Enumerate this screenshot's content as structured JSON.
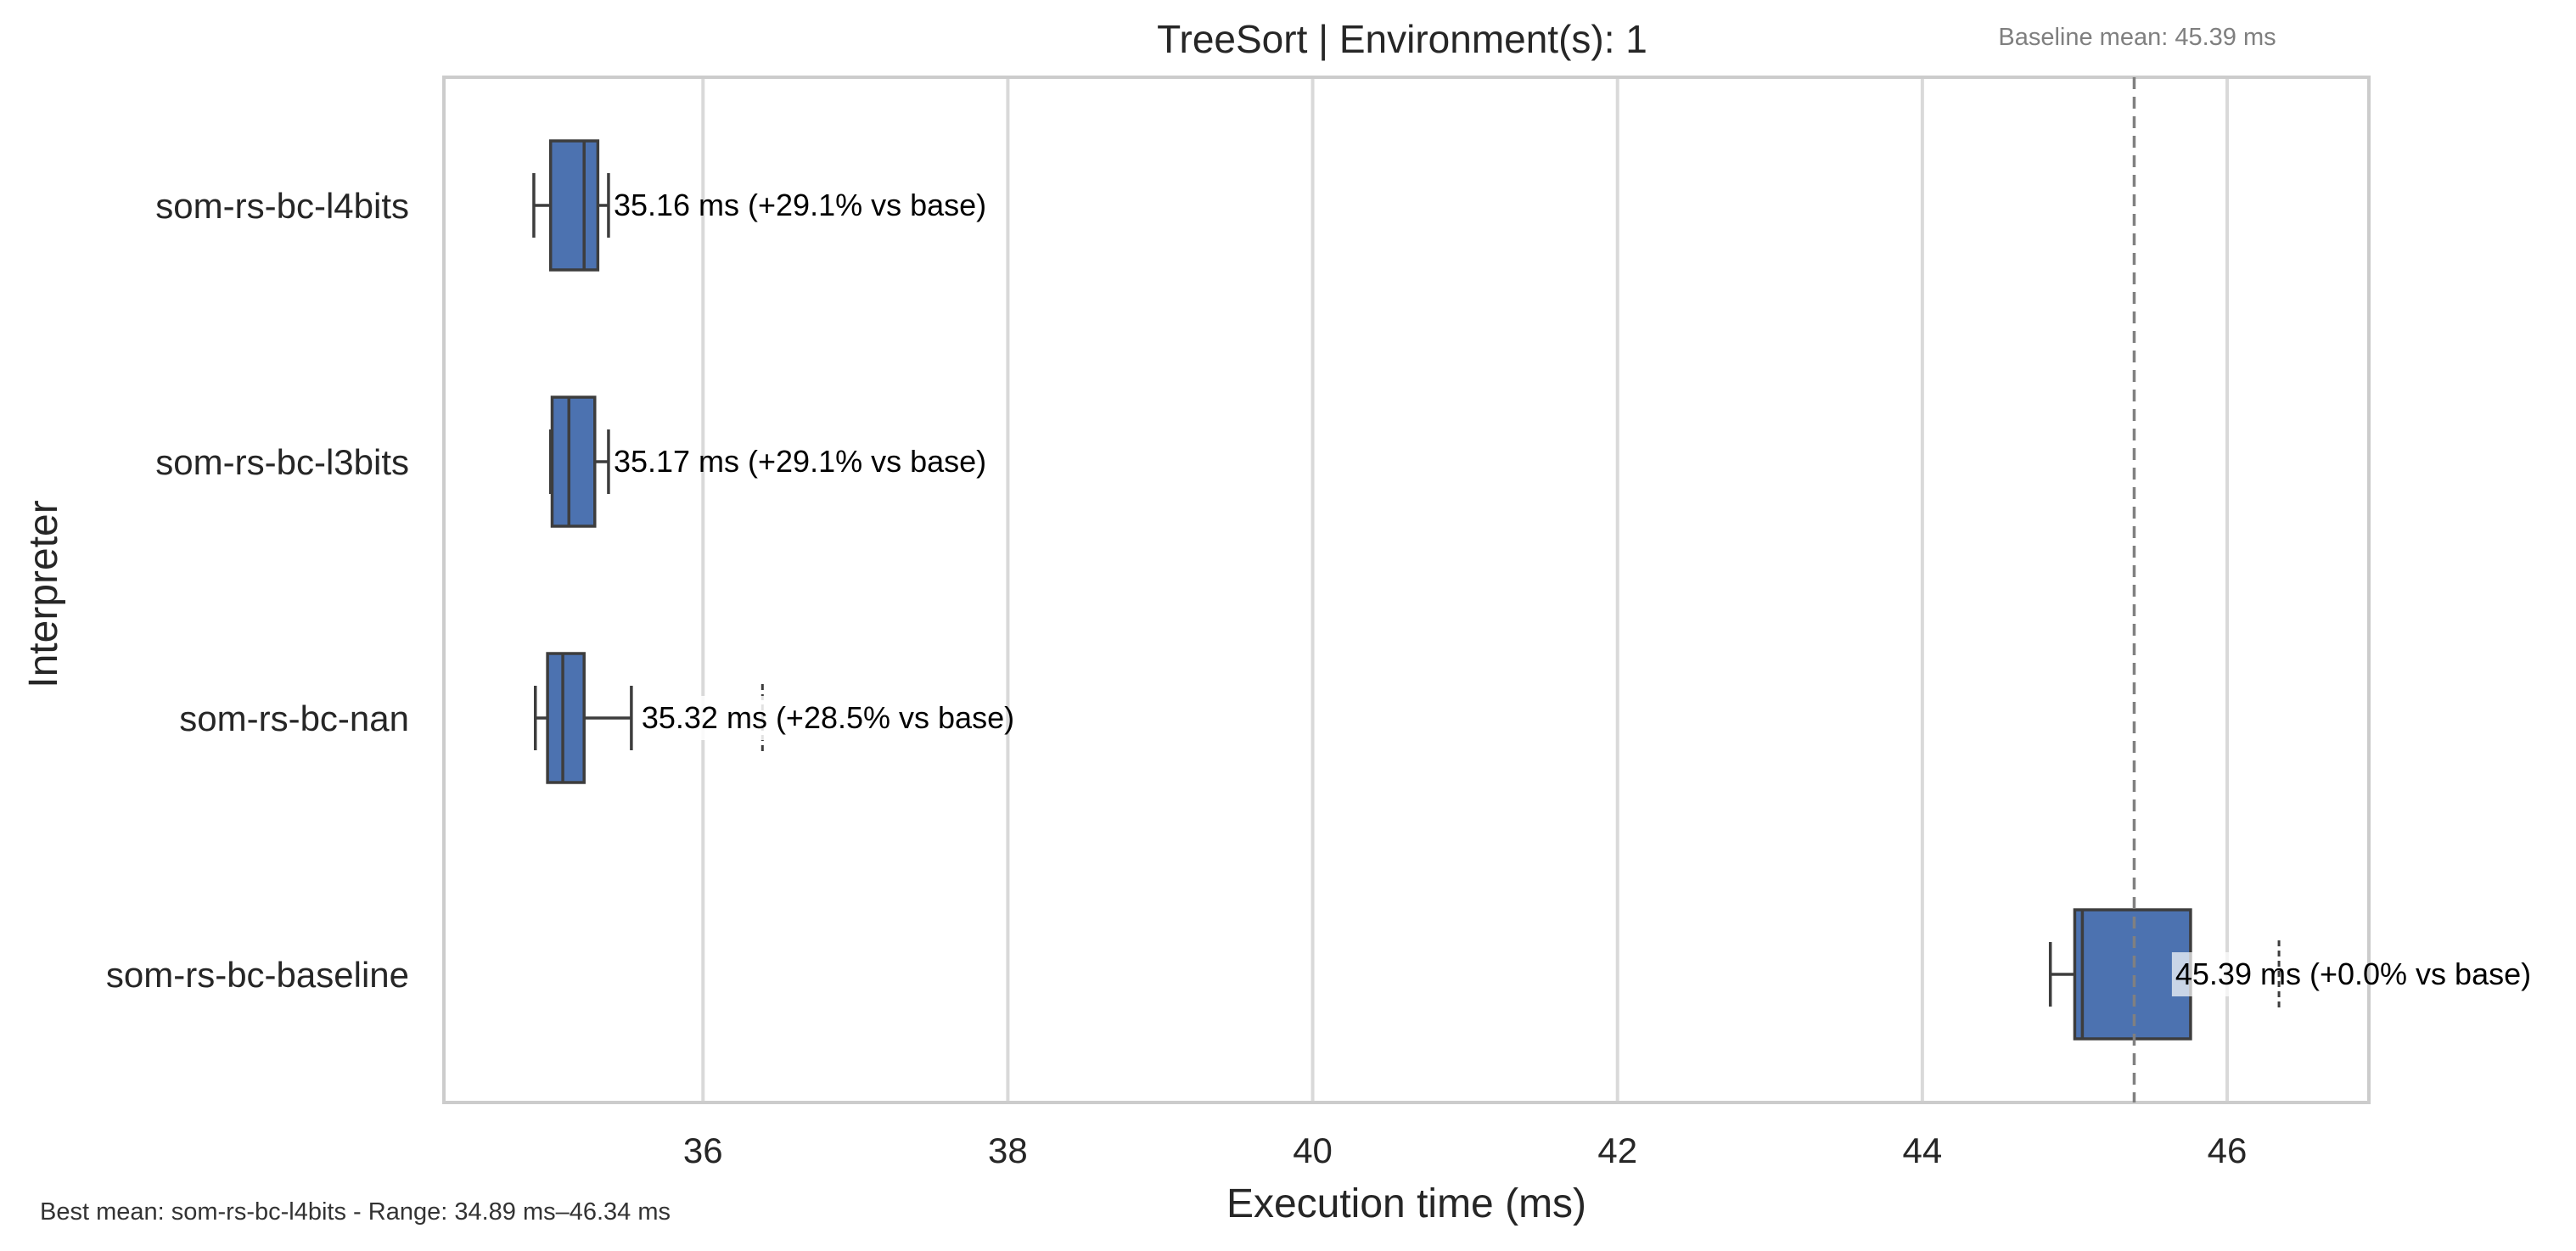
{
  "chart_data": {
    "type": "box",
    "title": "TreeSort | Environment(s): 1",
    "xlabel": "Execution time (ms)",
    "ylabel": "Interpreter",
    "orientation": "horizontal",
    "xlim": [
      34.3,
      46.93
    ],
    "xticks": [
      36,
      38,
      40,
      42,
      44,
      46
    ],
    "grid": "vertical",
    "box_color": "#4c72b0",
    "baseline": {
      "value": 45.39,
      "label": "Baseline mean: 45.39 ms"
    },
    "footer": "Best mean: som-rs-bc-l4bits - Range: 34.89 ms–46.34 ms",
    "categories": [
      "som-rs-bc-l4bits",
      "som-rs-bc-l3bits",
      "som-rs-bc-nan",
      "som-rs-bc-baseline"
    ],
    "series": [
      {
        "name": "som-rs-bc-l4bits",
        "whisker_low": 34.89,
        "q1": 35.0,
        "median": 35.22,
        "q3": 35.31,
        "whisker_high": 35.38,
        "outliers": [],
        "label": "35.16 ms  (+29.1% vs base)"
      },
      {
        "name": "som-rs-bc-l3bits",
        "whisker_low": 35.0,
        "q1": 35.01,
        "median": 35.12,
        "q3": 35.29,
        "whisker_high": 35.38,
        "outliers": [],
        "label": "35.17 ms  (+29.1% vs base)"
      },
      {
        "name": "som-rs-bc-nan",
        "whisker_low": 34.9,
        "q1": 34.98,
        "median": 35.08,
        "q3": 35.22,
        "whisker_high": 35.53,
        "outliers": [
          36.39
        ],
        "label": "35.32 ms  (+28.5% vs base)"
      },
      {
        "name": "som-rs-bc-baseline",
        "whisker_low": 44.84,
        "q1": 45.0,
        "median": 45.05,
        "q3": 45.76,
        "whisker_high": 45.76,
        "outliers": [
          46.34
        ],
        "label": "45.39 ms  (+0.0% vs base)"
      }
    ]
  }
}
